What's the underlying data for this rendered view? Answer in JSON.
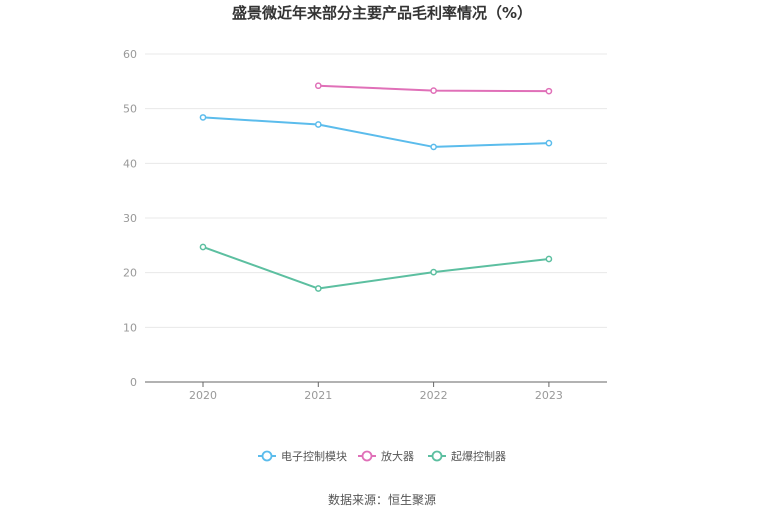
{
  "chart_data": {
    "type": "line",
    "title": "盛景微近年来部分主要产品毛利率情况（%）",
    "x": [
      "2020",
      "2021",
      "2022",
      "2023"
    ],
    "ylim": [
      0,
      60
    ],
    "yticks": [
      0,
      10,
      20,
      30,
      40,
      50,
      60
    ],
    "grid": true,
    "legend_position": "bottom",
    "series": [
      {
        "name": "电子控制模块",
        "color": "#5bbcec",
        "values": [
          48.4,
          47.1,
          43.0,
          43.7
        ]
      },
      {
        "name": "放大器",
        "color": "#e070b8",
        "values": [
          null,
          54.2,
          53.3,
          53.2
        ]
      },
      {
        "name": "起爆控制器",
        "color": "#5cbfa0",
        "values": [
          24.7,
          17.1,
          20.1,
          22.5
        ]
      }
    ],
    "source": "数据来源：恒生聚源"
  }
}
